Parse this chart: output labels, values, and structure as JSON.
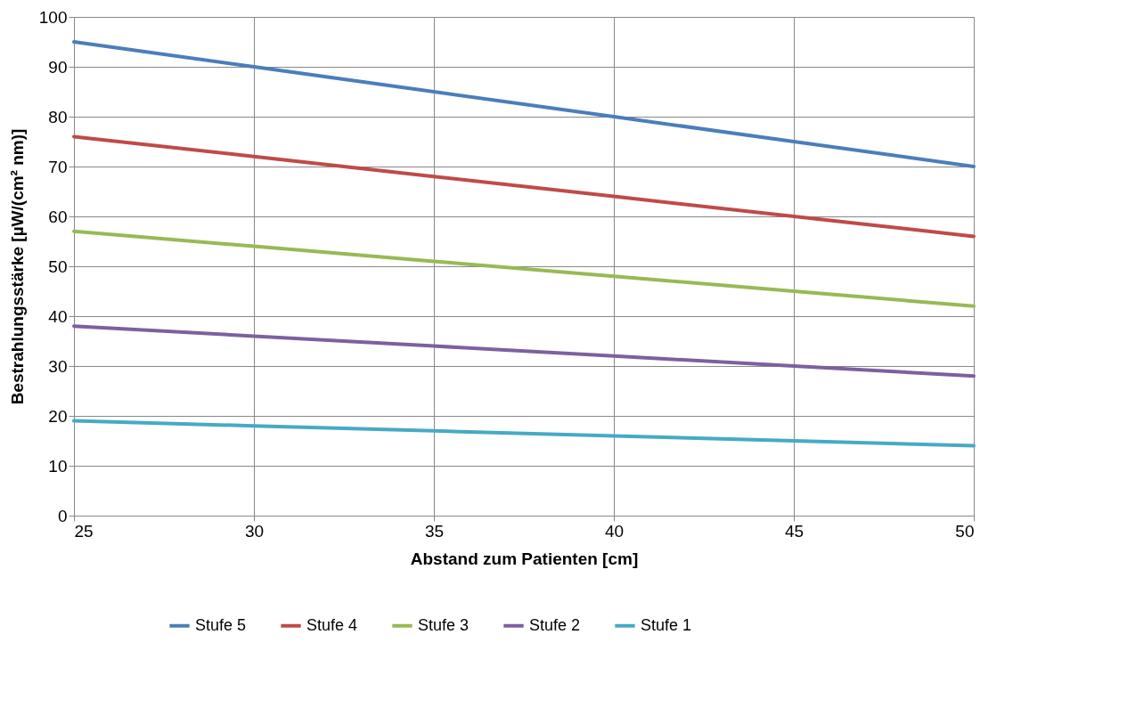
{
  "chart_data": {
    "type": "line",
    "xlabel": "Abstand zum Patienten [cm]",
    "ylabel": "Bestrahlungsstärke [µW/(cm² nm)]",
    "x": [
      25,
      30,
      35,
      40,
      45,
      50
    ],
    "series": [
      {
        "name": "Stufe 5",
        "color": "#4a7ebb",
        "values": [
          95,
          90,
          85,
          80,
          75,
          70
        ]
      },
      {
        "name": "Stufe 4",
        "color": "#be4b48",
        "values": [
          76,
          72,
          68,
          64,
          60,
          56
        ]
      },
      {
        "name": "Stufe 3",
        "color": "#98b954",
        "values": [
          57,
          54,
          51,
          48,
          45,
          42
        ]
      },
      {
        "name": "Stufe 2",
        "color": "#7d60a0",
        "values": [
          38,
          36,
          34,
          32,
          30,
          28
        ]
      },
      {
        "name": "Stufe 1",
        "color": "#46aac5",
        "values": [
          19,
          18,
          17,
          16,
          15,
          14
        ]
      }
    ],
    "xlim": [
      25,
      50
    ],
    "xticks": [
      25,
      30,
      35,
      40,
      45,
      50
    ],
    "ylim": [
      0,
      100
    ],
    "yticks": [
      0,
      10,
      20,
      30,
      40,
      50,
      60,
      70,
      80,
      90,
      100
    ],
    "grid": true,
    "legend": "bottom",
    "marker": "none",
    "line_style": "solid"
  }
}
